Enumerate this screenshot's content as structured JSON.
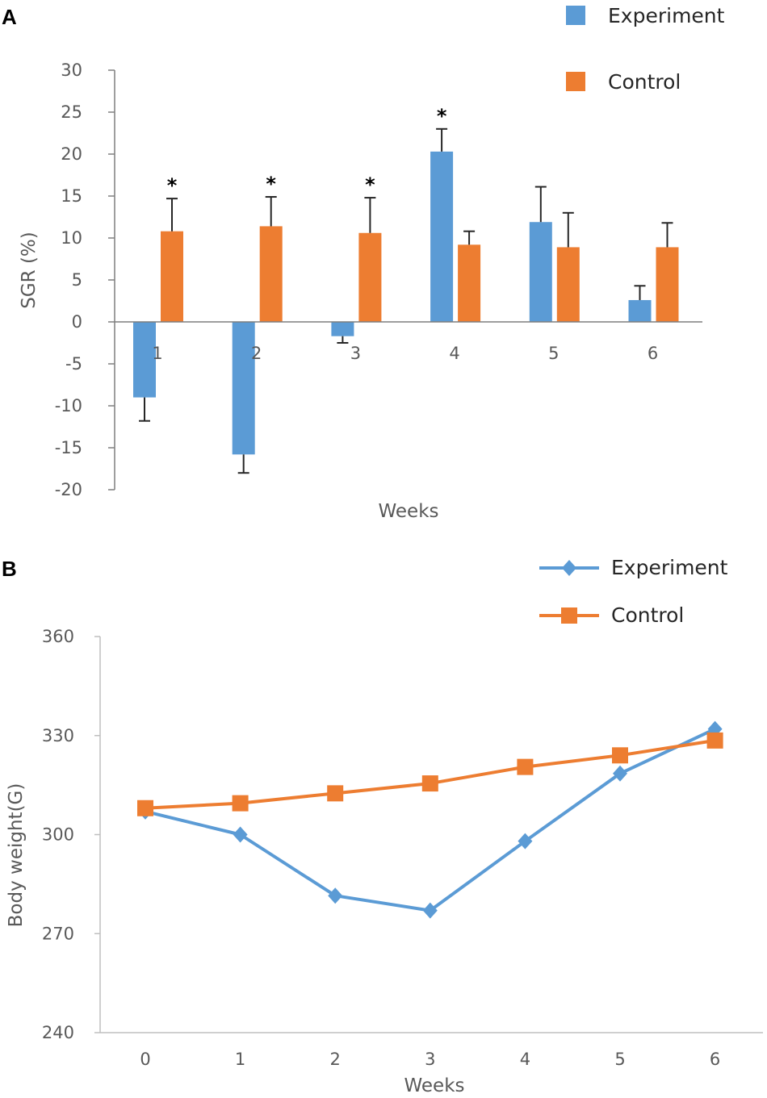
{
  "chart_data": [
    {
      "type": "bar",
      "panel": "A",
      "ylabel": "SGR (%)",
      "xlabel": "Weeks",
      "ylim": [
        -20,
        30
      ],
      "yticks": [
        30,
        25,
        20,
        15,
        10,
        5,
        0,
        -5,
        -10,
        -15,
        -20
      ],
      "categories": [
        "1",
        "2",
        "3",
        "4",
        "5",
        "6"
      ],
      "series": [
        {
          "name": "Experiment",
          "color": "#5b9bd5",
          "values": [
            -9,
            -15.8,
            -1.7,
            20.3,
            11.9,
            2.6
          ],
          "errors": [
            2.8,
            2.2,
            0.8,
            2.7,
            4.2,
            1.7
          ]
        },
        {
          "name": "Control",
          "color": "#ed7d31",
          "values": [
            10.8,
            11.4,
            10.6,
            9.2,
            8.9,
            8.9
          ],
          "errors": [
            3.9,
            3.5,
            4.2,
            1.6,
            4.1,
            2.9
          ]
        }
      ],
      "annotations": [
        {
          "category": "1",
          "series": "Control",
          "text": "*"
        },
        {
          "category": "2",
          "series": "Control",
          "text": "*"
        },
        {
          "category": "3",
          "series": "Control",
          "text": "*"
        },
        {
          "category": "4",
          "series": "Experiment",
          "text": "*"
        }
      ],
      "legend": "top-right"
    },
    {
      "type": "line",
      "panel": "B",
      "ylabel": "Body weight(G)",
      "xlabel": "Weeks",
      "ylim": [
        240,
        360
      ],
      "yticks": [
        360,
        330,
        300,
        270,
        240
      ],
      "x": [
        "0",
        "1",
        "2",
        "3",
        "4",
        "5",
        "6"
      ],
      "series": [
        {
          "name": "Experiment",
          "color": "#5b9bd5",
          "marker": "diamond",
          "values": [
            307,
            300,
            281.5,
            277,
            298,
            318.5,
            332
          ]
        },
        {
          "name": "Control",
          "color": "#ed7d31",
          "marker": "square",
          "values": [
            308,
            309.5,
            312.5,
            315.5,
            320.5,
            324,
            328.5
          ]
        }
      ],
      "legend": "top-right"
    }
  ]
}
